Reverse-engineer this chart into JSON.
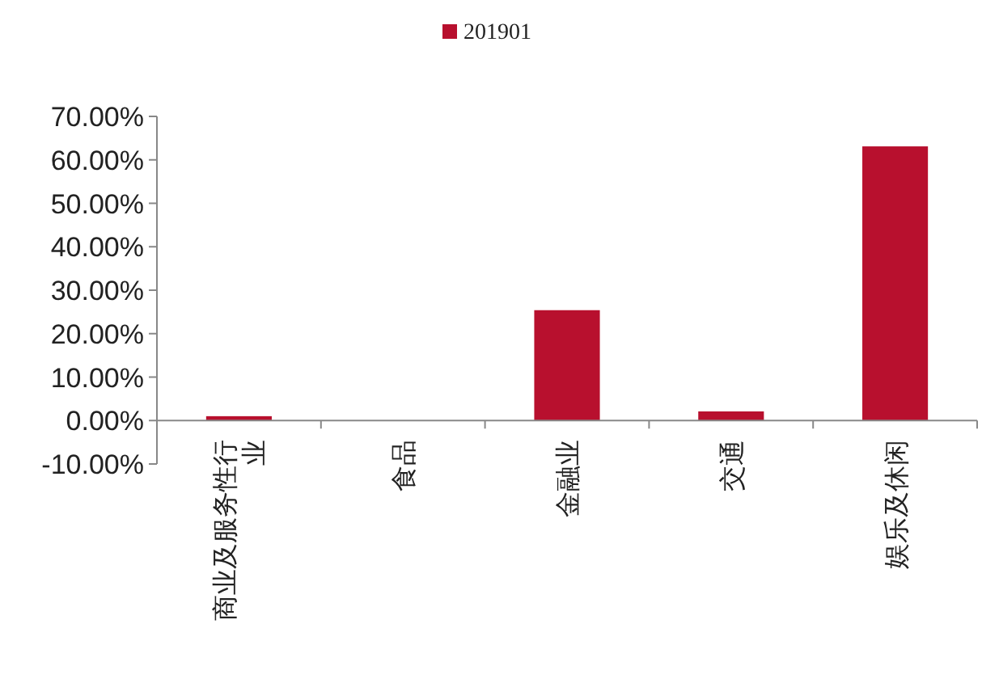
{
  "chart_data": {
    "type": "bar",
    "categories": [
      "商业及服务性行业",
      "食品",
      "金融业",
      "交通",
      "娱乐及休闲"
    ],
    "series": [
      {
        "name": "201901",
        "color": "#b8102e",
        "values": [
          1.0,
          0,
          25.4,
          2.1,
          63.1
        ]
      }
    ],
    "ylim": [
      -10,
      70
    ],
    "yticks": [
      {
        "value": -10,
        "label": "-10.00%"
      },
      {
        "value": 0,
        "label": "0.00%"
      },
      {
        "value": 10,
        "label": "10.00%"
      },
      {
        "value": 20,
        "label": "20.00%"
      },
      {
        "value": 30,
        "label": "30.00%"
      },
      {
        "value": 40,
        "label": "40.00%"
      },
      {
        "value": 50,
        "label": "50.00%"
      },
      {
        "value": 60,
        "label": "60.00%"
      },
      {
        "value": 70,
        "label": "70.00%"
      }
    ],
    "grid": false,
    "legend": "top"
  }
}
